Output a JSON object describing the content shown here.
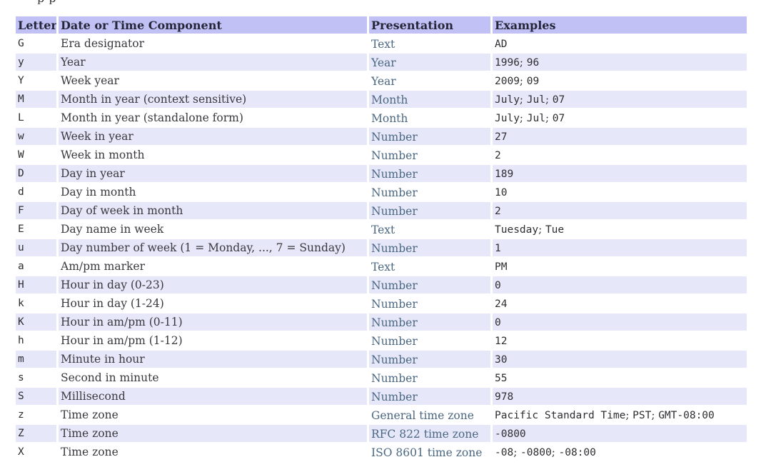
{
  "page": {
    "clipped_fragment_above_table": "pp"
  },
  "colors": {
    "header_bg": "#c1c1f5",
    "alt_row_bg": "#e7e7fa",
    "link": "#4a6782",
    "text": "#38383e",
    "header_text": "#26263b"
  },
  "table": {
    "headers": [
      "Letter",
      "Date or Time Component",
      "Presentation",
      "Examples"
    ],
    "example_separator": "; ",
    "rows": [
      {
        "letter": "G",
        "component": "Era designator",
        "presentation": "Text",
        "examples": [
          "AD"
        ]
      },
      {
        "letter": "y",
        "component": "Year",
        "presentation": "Year",
        "examples": [
          "1996",
          "96"
        ]
      },
      {
        "letter": "Y",
        "component": "Week year",
        "presentation": "Year",
        "examples": [
          "2009",
          "09"
        ]
      },
      {
        "letter": "M",
        "component": "Month in year (context sensitive)",
        "presentation": "Month",
        "examples": [
          "July",
          "Jul",
          "07"
        ]
      },
      {
        "letter": "L",
        "component": "Month in year (standalone form)",
        "presentation": "Month",
        "examples": [
          "July",
          "Jul",
          "07"
        ]
      },
      {
        "letter": "w",
        "component": "Week in year",
        "presentation": "Number",
        "examples": [
          "27"
        ]
      },
      {
        "letter": "W",
        "component": "Week in month",
        "presentation": "Number",
        "examples": [
          "2"
        ]
      },
      {
        "letter": "D",
        "component": "Day in year",
        "presentation": "Number",
        "examples": [
          "189"
        ]
      },
      {
        "letter": "d",
        "component": "Day in month",
        "presentation": "Number",
        "examples": [
          "10"
        ]
      },
      {
        "letter": "F",
        "component": "Day of week in month",
        "presentation": "Number",
        "examples": [
          "2"
        ]
      },
      {
        "letter": "E",
        "component": "Day name in week",
        "presentation": "Text",
        "examples": [
          "Tuesday",
          "Tue"
        ]
      },
      {
        "letter": "u",
        "component": "Day number of week (1 = Monday, ..., 7 = Sunday)",
        "presentation": "Number",
        "examples": [
          "1"
        ]
      },
      {
        "letter": "a",
        "component": "Am/pm marker",
        "presentation": "Text",
        "examples": [
          "PM"
        ]
      },
      {
        "letter": "H",
        "component": "Hour in day (0-23)",
        "presentation": "Number",
        "examples": [
          "0"
        ]
      },
      {
        "letter": "k",
        "component": "Hour in day (1-24)",
        "presentation": "Number",
        "examples": [
          "24"
        ]
      },
      {
        "letter": "K",
        "component": "Hour in am/pm (0-11)",
        "presentation": "Number",
        "examples": [
          "0"
        ]
      },
      {
        "letter": "h",
        "component": "Hour in am/pm (1-12)",
        "presentation": "Number",
        "examples": [
          "12"
        ]
      },
      {
        "letter": "m",
        "component": "Minute in hour",
        "presentation": "Number",
        "examples": [
          "30"
        ]
      },
      {
        "letter": "s",
        "component": "Second in minute",
        "presentation": "Number",
        "examples": [
          "55"
        ]
      },
      {
        "letter": "S",
        "component": "Millisecond",
        "presentation": "Number",
        "examples": [
          "978"
        ]
      },
      {
        "letter": "z",
        "component": "Time zone",
        "presentation": "General time zone",
        "examples": [
          "Pacific Standard Time",
          "PST",
          "GMT-08:00"
        ]
      },
      {
        "letter": "Z",
        "component": "Time zone",
        "presentation": "RFC 822 time zone",
        "examples": [
          "-0800"
        ]
      },
      {
        "letter": "X",
        "component": "Time zone",
        "presentation": "ISO 8601 time zone",
        "examples": [
          "-08",
          "-0800",
          "-08:00"
        ]
      }
    ]
  }
}
